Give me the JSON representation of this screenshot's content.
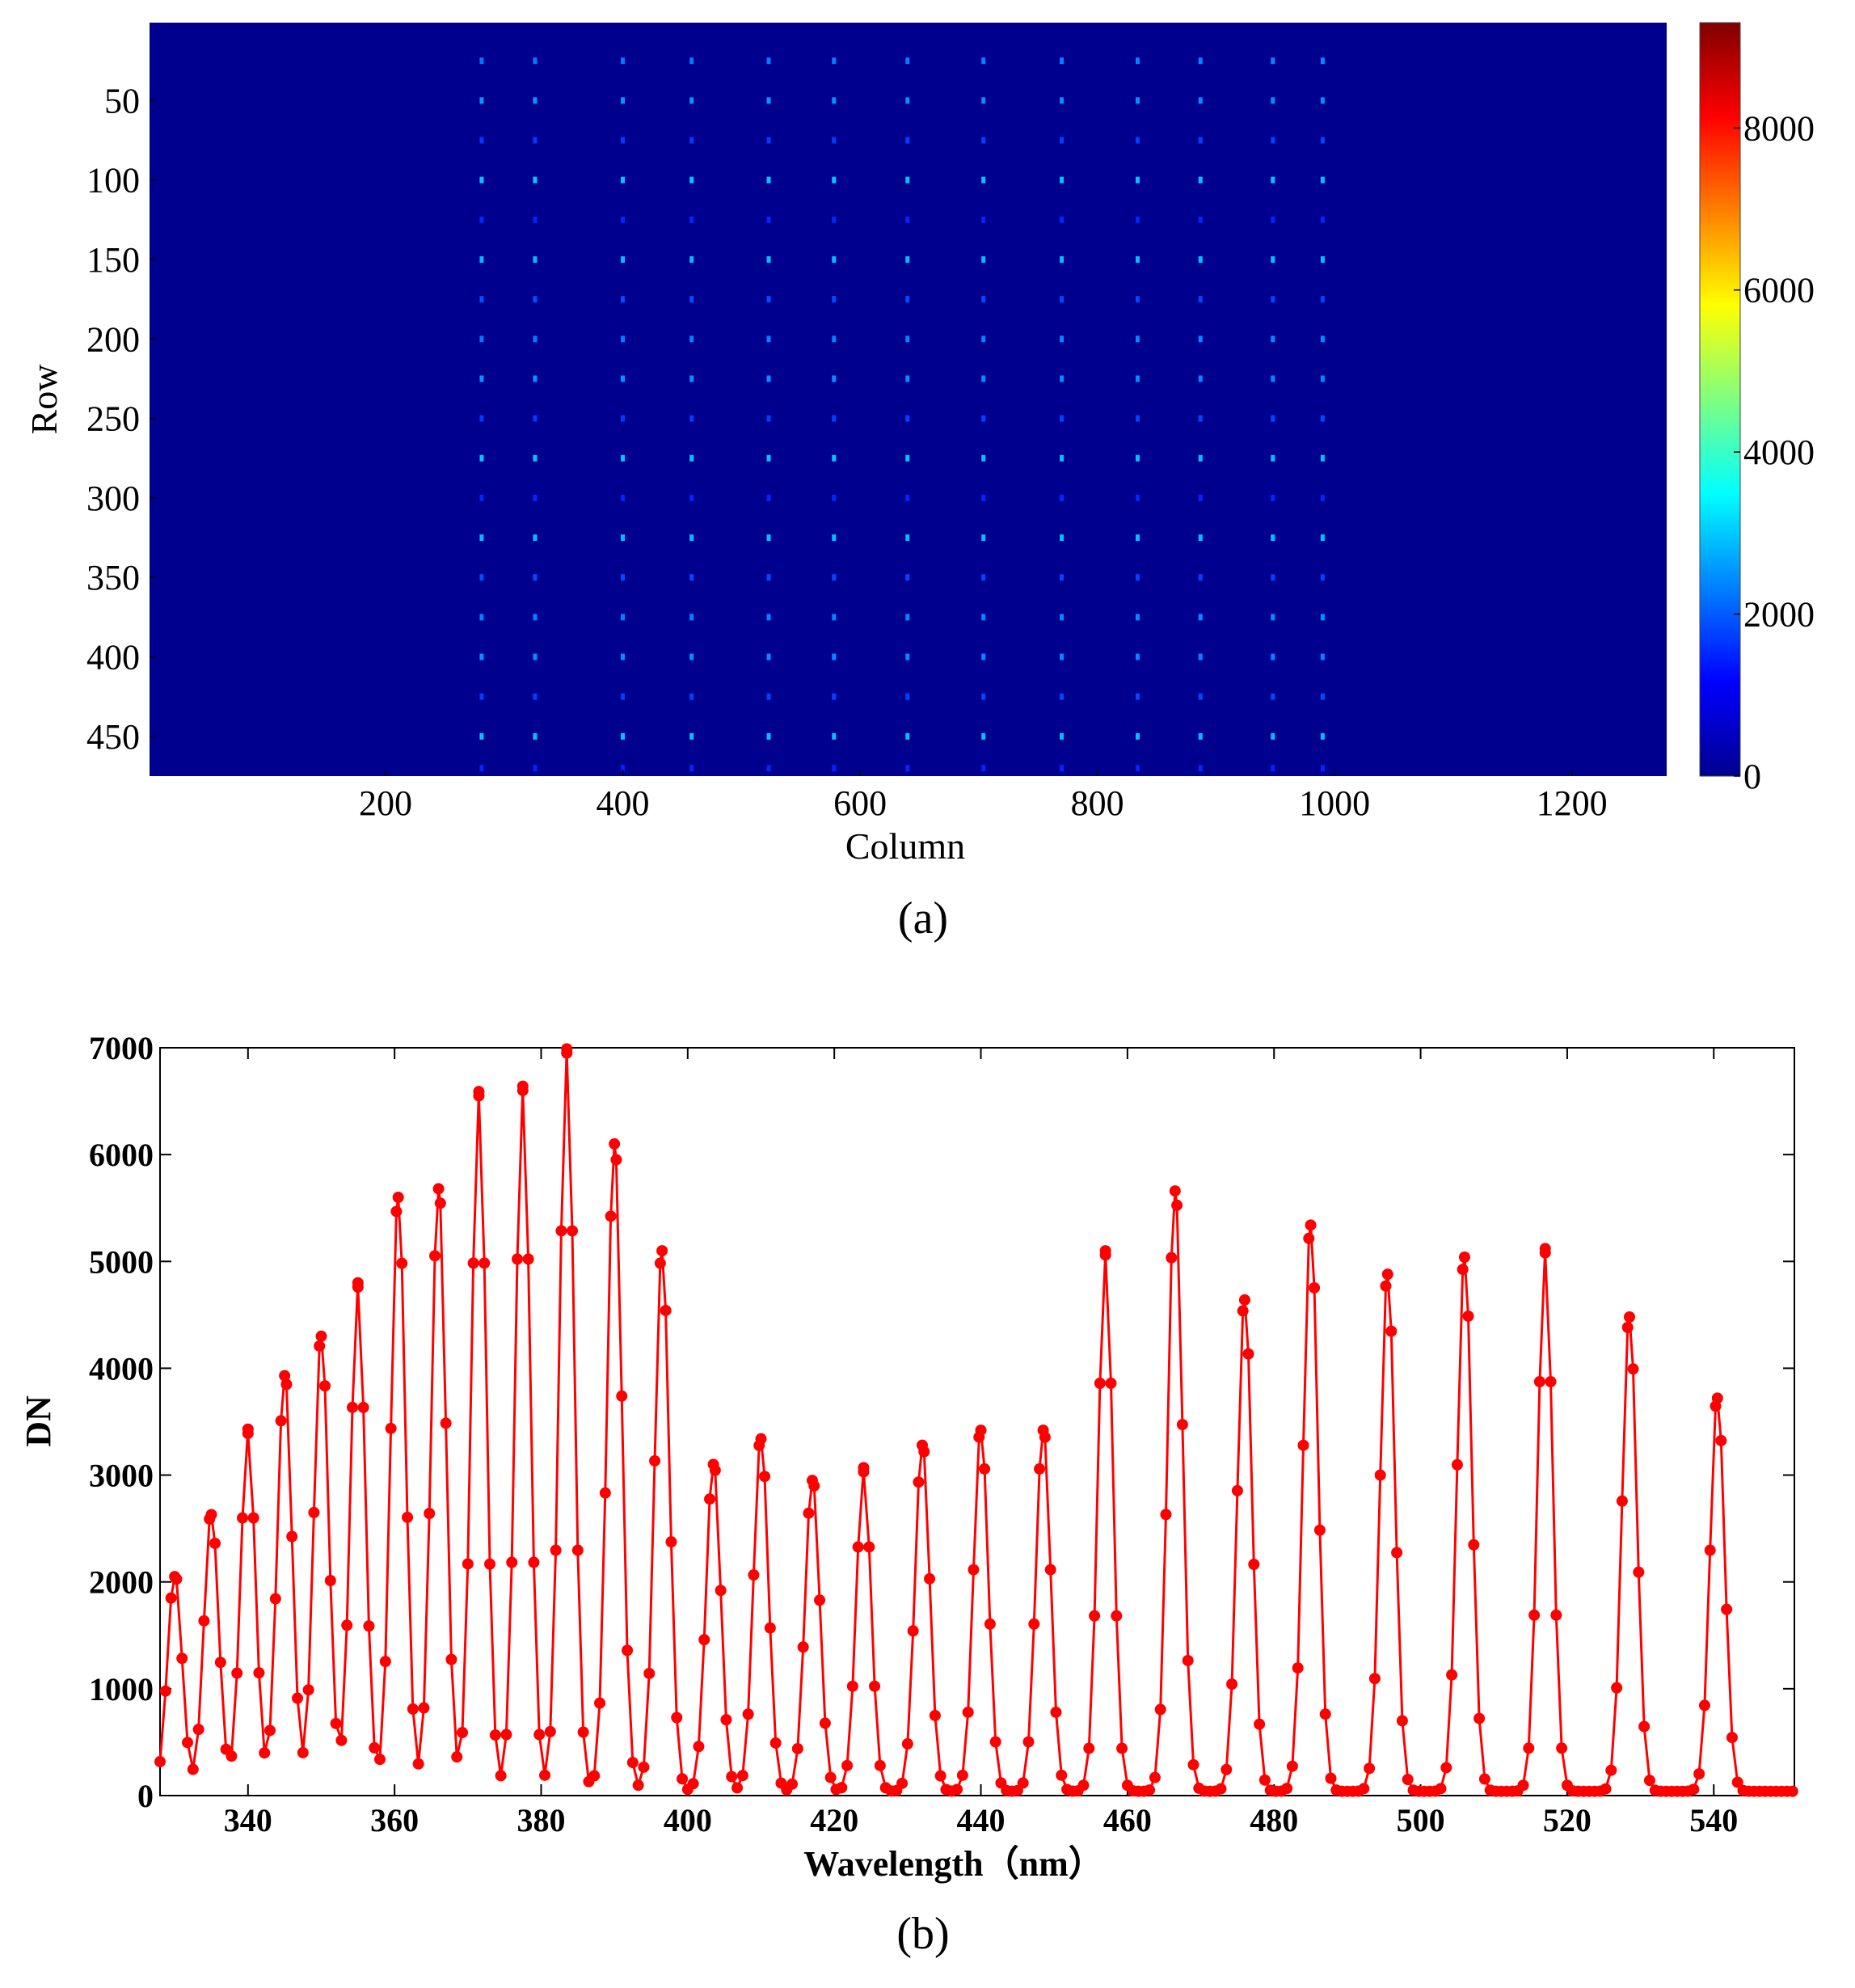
{
  "chart_data": [
    {
      "type": "heatmap",
      "xlabel": "Column",
      "ylabel": "Row",
      "caption": "(a)",
      "xlim": [
        1,
        1280
      ],
      "ylim": [
        1,
        475
      ],
      "x_ticks": [
        200,
        400,
        600,
        800,
        1000,
        1200
      ],
      "y_ticks": [
        50,
        100,
        150,
        200,
        250,
        300,
        350,
        400,
        450
      ],
      "colorbar": {
        "min": 0,
        "max": 9300,
        "ticks": [
          0,
          2000,
          4000,
          6000,
          8000
        ],
        "colormap": "jet"
      },
      "background_value": 0,
      "spectral_line_columns": [
        281,
        326,
        400,
        458,
        523,
        578,
        640,
        704,
        770,
        834,
        887,
        948,
        990
      ],
      "dot_rows": [
        25,
        50,
        75,
        100,
        125,
        150,
        175,
        200,
        225,
        250,
        275,
        300,
        325,
        350,
        375,
        400,
        425,
        450,
        470
      ],
      "peak_intensity": 3000
    },
    {
      "type": "line",
      "xlabel": "Wavelength（nm）",
      "ylabel": "DN",
      "caption": "(b)",
      "xlim": [
        328,
        551
      ],
      "ylim": [
        0,
        7000
      ],
      "x_ticks": [
        340,
        360,
        380,
        400,
        420,
        440,
        460,
        480,
        500,
        520,
        540
      ],
      "y_ticks": [
        0,
        1000,
        2000,
        3000,
        4000,
        5000,
        6000,
        7000
      ],
      "color": "#ff0000",
      "peaks": [
        {
          "x": 330.0,
          "y": 2050
        },
        {
          "x": 335.0,
          "y": 2630
        },
        {
          "x": 340.0,
          "y": 3390
        },
        {
          "x": 345.0,
          "y": 3930
        },
        {
          "x": 350.0,
          "y": 4300
        },
        {
          "x": 355.0,
          "y": 4760
        },
        {
          "x": 360.5,
          "y": 5600
        },
        {
          "x": 366.0,
          "y": 5680
        },
        {
          "x": 371.5,
          "y": 6550
        },
        {
          "x": 377.5,
          "y": 6600
        },
        {
          "x": 383.5,
          "y": 6950
        },
        {
          "x": 390.0,
          "y": 6100
        },
        {
          "x": 396.5,
          "y": 5100
        },
        {
          "x": 403.5,
          "y": 3100
        },
        {
          "x": 410.0,
          "y": 3340
        },
        {
          "x": 417.0,
          "y": 2950
        },
        {
          "x": 424.0,
          "y": 3030
        },
        {
          "x": 432.0,
          "y": 3280
        },
        {
          "x": 440.0,
          "y": 3420
        },
        {
          "x": 448.5,
          "y": 3420
        },
        {
          "x": 457.0,
          "y": 5060
        },
        {
          "x": 466.5,
          "y": 5660
        },
        {
          "x": 476.0,
          "y": 4640
        },
        {
          "x": 485.0,
          "y": 5340
        },
        {
          "x": 495.5,
          "y": 4880
        },
        {
          "x": 506.0,
          "y": 5040
        },
        {
          "x": 517.0,
          "y": 5080
        },
        {
          "x": 528.5,
          "y": 4480
        },
        {
          "x": 540.5,
          "y": 3720
        }
      ],
      "peak_width_nm": 1.0,
      "sample_step_nm": 0.75,
      "baseline": 40
    }
  ]
}
